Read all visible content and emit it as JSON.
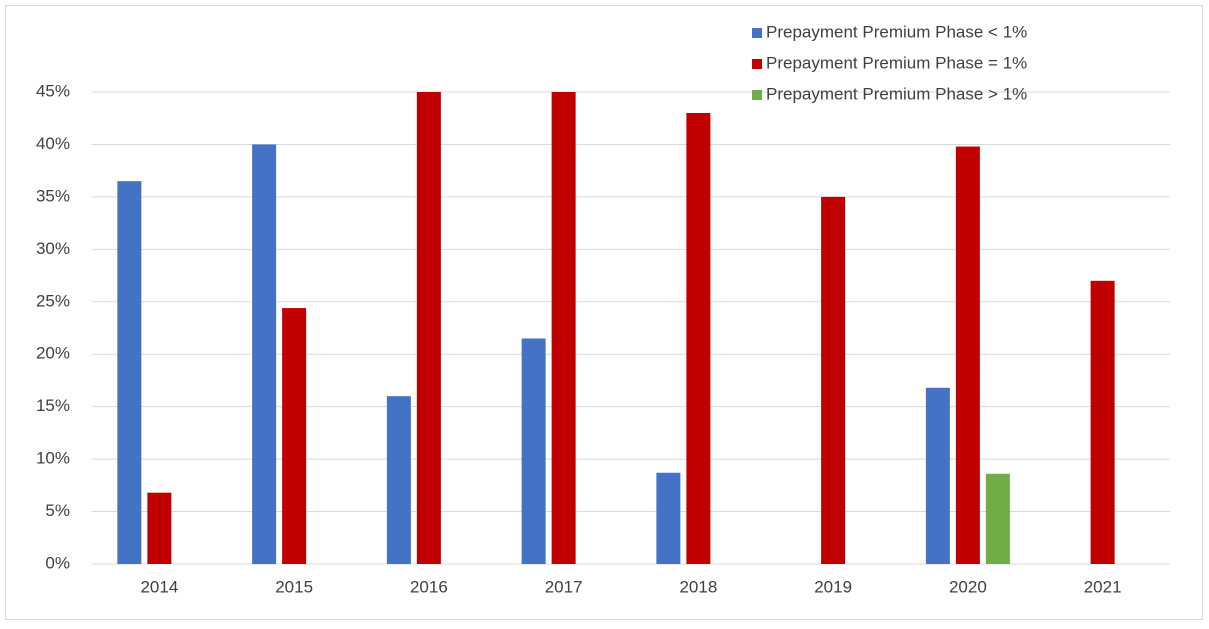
{
  "chart_data": {
    "type": "bar",
    "categories": [
      "2014",
      "2015",
      "2016",
      "2017",
      "2018",
      "2019",
      "2020",
      "2021"
    ],
    "series": [
      {
        "name": "Prepayment Premium Phase < 1%",
        "color": "#4472c4",
        "values": [
          36.5,
          40.0,
          16.0,
          21.5,
          8.7,
          null,
          16.8,
          null
        ]
      },
      {
        "name": "Prepayment Premium Phase = 1%",
        "color": "#c00000",
        "values": [
          6.8,
          24.4,
          45.0,
          45.0,
          43.0,
          35.0,
          39.8,
          27.0
        ]
      },
      {
        "name": "Prepayment Premium Phase > 1%",
        "color": "#70ad47",
        "values": [
          null,
          null,
          null,
          null,
          null,
          null,
          8.6,
          null
        ]
      }
    ],
    "ylim": [
      0,
      45
    ],
    "yticks": [
      {
        "value": 0,
        "label": "0%"
      },
      {
        "value": 5,
        "label": "5%"
      },
      {
        "value": 10,
        "label": "10%"
      },
      {
        "value": 15,
        "label": "15%"
      },
      {
        "value": 20,
        "label": "20%"
      },
      {
        "value": 25,
        "label": "25%"
      },
      {
        "value": 30,
        "label": "30%"
      },
      {
        "value": 35,
        "label": "35%"
      },
      {
        "value": 40,
        "label": "40%"
      },
      {
        "value": 45,
        "label": "45%"
      }
    ],
    "grid": true,
    "legend": "top-right"
  }
}
